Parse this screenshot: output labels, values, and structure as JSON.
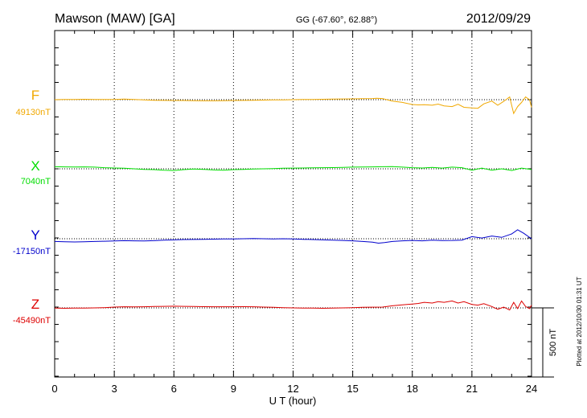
{
  "chart_data": {
    "type": "line",
    "title": "Mawson (MAW)  [GA]",
    "coords": "GG (-67.60°,  62.88°)",
    "date": "2012/09/29",
    "xlabel": "U T (hour)",
    "xlim": [
      0,
      24
    ],
    "xticks": [
      "0",
      "3",
      "6",
      "9",
      "12",
      "15",
      "18",
      "21",
      "24"
    ],
    "scale_label": "500 nT",
    "plotted_note": "Plotted at 2012/10/30 01:31  UT",
    "grid": "dotted vertical at every 3 hours",
    "series": [
      {
        "name": "F",
        "baseline": "49130nT",
        "baseline_value": 49130,
        "color": "#f0a800",
        "x": [
          0,
          0.5,
          1,
          1.5,
          2,
          2.5,
          3,
          3.5,
          4,
          4.5,
          5,
          5.5,
          6,
          6.5,
          7,
          7.5,
          8,
          8.5,
          9,
          9.5,
          10,
          10.5,
          11,
          11.5,
          12,
          12.5,
          13,
          13.5,
          14,
          14.5,
          15,
          15.5,
          16,
          16.2,
          16.5,
          17,
          17.5,
          18,
          18.3,
          18.6,
          19,
          19.3,
          19.6,
          20,
          20.3,
          20.6,
          21,
          21.3,
          21.6,
          22,
          22.3,
          22.6,
          22.9,
          23.1,
          23.3,
          23.5,
          23.7,
          23.9,
          24
        ],
        "y": [
          49130,
          49131,
          49132,
          49133,
          49132,
          49131,
          49131,
          49134,
          49132,
          49128,
          49126,
          49125,
          49124,
          49124,
          49123,
          49122,
          49122,
          49123,
          49124,
          49125,
          49126,
          49127,
          49128,
          49129,
          49130,
          49131,
          49132,
          49133,
          49134,
          49135,
          49136,
          49137,
          49138,
          49140,
          49138,
          49120,
          49110,
          49095,
          49092,
          49094,
          49090,
          49098,
          49085,
          49080,
          49097,
          49075,
          49070,
          49068,
          49100,
          49120,
          49090,
          49118,
          49150,
          49030,
          49080,
          49110,
          49150,
          49130,
          49075
        ]
      },
      {
        "name": "X",
        "baseline": "7040nT",
        "baseline_value": 7040,
        "color": "#00dd00",
        "x": [
          0,
          0.5,
          1,
          1.5,
          2,
          2.5,
          3,
          3.5,
          4,
          4.5,
          5,
          5.5,
          6,
          6.5,
          7,
          7.5,
          8,
          8.5,
          9,
          9.5,
          10,
          10.5,
          11,
          11.5,
          12,
          12.5,
          13,
          13.5,
          14,
          14.5,
          15,
          15.5,
          16,
          16.5,
          17,
          17.5,
          18,
          18.5,
          19,
          19.5,
          20,
          20.5,
          21,
          21.5,
          22,
          22.5,
          23,
          23.5,
          24
        ],
        "y": [
          7055,
          7054,
          7053,
          7054,
          7052,
          7048,
          7046,
          7044,
          7040,
          7036,
          7034,
          7030,
          7028,
          7034,
          7038,
          7036,
          7032,
          7030,
          7034,
          7036,
          7038,
          7040,
          7042,
          7044,
          7045,
          7046,
          7047,
          7048,
          7049,
          7050,
          7052,
          7053,
          7054,
          7055,
          7056,
          7052,
          7048,
          7046,
          7050,
          7045,
          7052,
          7048,
          7030,
          7045,
          7030,
          7040,
          7028,
          7045,
          7035
        ]
      },
      {
        "name": "Y",
        "baseline": "-17150nT",
        "baseline_value": -17150,
        "color": "#0000cc",
        "x": [
          0,
          0.5,
          1,
          1.5,
          2,
          2.5,
          3,
          3.5,
          4,
          4.5,
          5,
          5.5,
          6,
          6.5,
          7,
          7.5,
          8,
          8.5,
          9,
          9.5,
          10,
          10.5,
          11,
          11.5,
          12,
          12.5,
          13,
          13.5,
          14,
          14.5,
          15,
          15.5,
          16,
          16.3,
          16.6,
          17,
          17.5,
          18,
          18.5,
          19,
          19.5,
          20,
          20.5,
          21,
          21.5,
          22,
          22.5,
          23,
          23.3,
          23.6,
          24
        ],
        "y": [
          -17170,
          -17172,
          -17173,
          -17172,
          -17170,
          -17168,
          -17166,
          -17164,
          -17165,
          -17166,
          -17164,
          -17160,
          -17158,
          -17156,
          -17155,
          -17154,
          -17153,
          -17152,
          -17151,
          -17150,
          -17149,
          -17150,
          -17151,
          -17150,
          -17152,
          -17154,
          -17156,
          -17158,
          -17160,
          -17162,
          -17165,
          -17170,
          -17175,
          -17182,
          -17178,
          -17170,
          -17165,
          -17162,
          -17165,
          -17160,
          -17163,
          -17162,
          -17160,
          -17135,
          -17145,
          -17130,
          -17140,
          -17115,
          -17085,
          -17110,
          -17150
        ]
      },
      {
        "name": "Z",
        "baseline": "-45490nT",
        "baseline_value": -45490,
        "color": "#dd0000",
        "x": [
          0,
          0.5,
          1,
          1.5,
          2,
          2.5,
          3,
          3.5,
          4,
          4.5,
          5,
          5.5,
          6,
          6.5,
          7,
          7.5,
          8,
          8.5,
          9,
          9.5,
          10,
          10.5,
          11,
          11.5,
          12,
          12.5,
          13,
          13.5,
          14,
          14.5,
          15,
          15.5,
          16,
          16.5,
          17,
          17.5,
          18,
          18.3,
          18.6,
          19,
          19.3,
          19.6,
          20,
          20.3,
          20.6,
          21,
          21.3,
          21.6,
          22,
          22.3,
          22.6,
          22.9,
          23.1,
          23.3,
          23.5,
          23.7,
          23.9,
          24
        ],
        "y": [
          -45492,
          -45493,
          -45492,
          -45491,
          -45490,
          -45488,
          -45484,
          -45482,
          -45483,
          -45482,
          -45480,
          -45479,
          -45478,
          -45479,
          -45480,
          -45481,
          -45482,
          -45482,
          -45482,
          -45481,
          -45482,
          -45484,
          -45486,
          -45488,
          -45490,
          -45491,
          -45492,
          -45493,
          -45492,
          -45490,
          -45488,
          -45486,
          -45485,
          -45484,
          -45475,
          -45468,
          -45462,
          -45458,
          -45450,
          -45455,
          -45445,
          -45450,
          -45440,
          -45455,
          -45445,
          -45465,
          -45470,
          -45460,
          -45480,
          -45500,
          -45485,
          -45505,
          -45450,
          -45495,
          -45440,
          -45480,
          -45495,
          -45470
        ]
      }
    ]
  }
}
